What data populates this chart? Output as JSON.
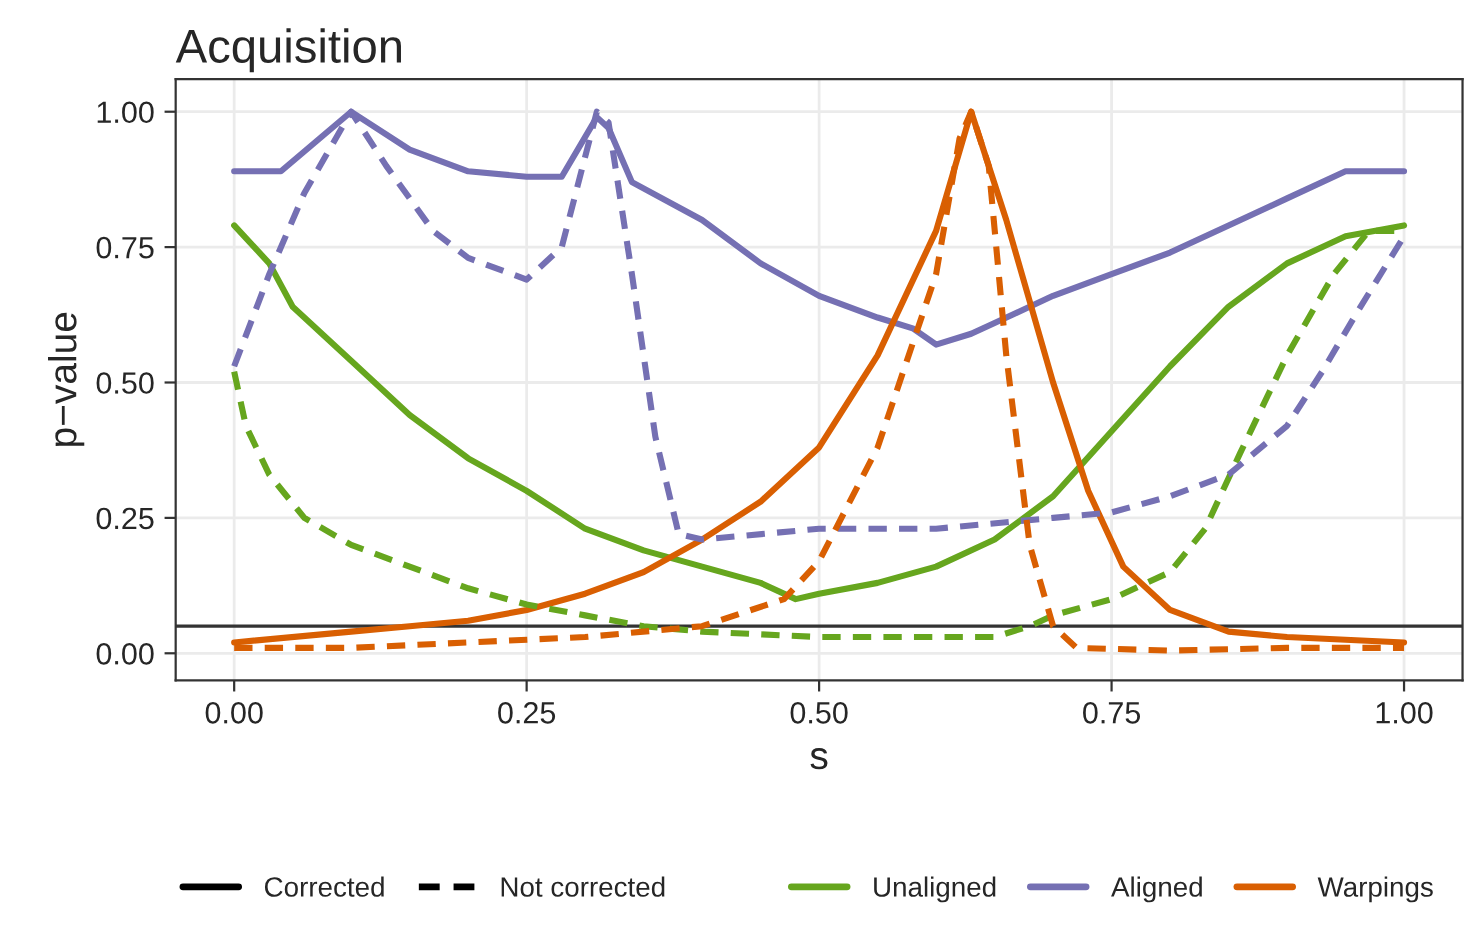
{
  "chart_data": {
    "type": "line",
    "title": "Acquisition",
    "xlabel": "s",
    "ylabel": "p−value",
    "xlim": [
      -0.05,
      1.05
    ],
    "ylim": [
      -0.05,
      1.06
    ],
    "xticks": [
      {
        "value": 0,
        "label": "0.00"
      },
      {
        "value": 0.25,
        "label": "0.25"
      },
      {
        "value": 0.5,
        "label": "0.50"
      },
      {
        "value": 0.75,
        "label": "0.75"
      },
      {
        "value": 1,
        "label": "1.00"
      }
    ],
    "yticks": [
      {
        "value": 0,
        "label": "0.00"
      },
      {
        "value": 0.25,
        "label": "0.25"
      },
      {
        "value": 0.5,
        "label": "0.50"
      },
      {
        "value": 0.75,
        "label": "0.75"
      },
      {
        "value": 1,
        "label": "1.00"
      }
    ],
    "grid": true,
    "legend": "bottom",
    "annotations": [
      "Corrected",
      "Not corrected"
    ],
    "ref_lines": [
      {
        "axis": "y",
        "value": 0.05,
        "color": "#333333"
      }
    ],
    "series": [
      {
        "name": "Unaligned",
        "color": "#66a61e",
        "line_style": "solid",
        "x": [
          0,
          0.03,
          0.05,
          0.1,
          0.15,
          0.2,
          0.25,
          0.3,
          0.35,
          0.4,
          0.45,
          0.48,
          0.5,
          0.55,
          0.6,
          0.65,
          0.7,
          0.75,
          0.8,
          0.85,
          0.9,
          0.95,
          1.0
        ],
        "values": [
          0.79,
          0.72,
          0.64,
          0.54,
          0.44,
          0.36,
          0.3,
          0.23,
          0.19,
          0.16,
          0.13,
          0.1,
          0.11,
          0.13,
          0.16,
          0.21,
          0.29,
          0.41,
          0.53,
          0.64,
          0.72,
          0.77,
          0.79
        ]
      },
      {
        "name": "Aligned",
        "color": "#7570b3",
        "line_style": "solid",
        "x": [
          0,
          0.04,
          0.1,
          0.15,
          0.2,
          0.25,
          0.28,
          0.31,
          0.32,
          0.34,
          0.4,
          0.45,
          0.5,
          0.55,
          0.58,
          0.6,
          0.63,
          0.65,
          0.7,
          0.75,
          0.8,
          0.85,
          0.9,
          0.95,
          1.0
        ],
        "values": [
          0.89,
          0.89,
          1.0,
          0.93,
          0.89,
          0.88,
          0.88,
          0.99,
          0.97,
          0.87,
          0.8,
          0.72,
          0.66,
          0.62,
          0.6,
          0.57,
          0.59,
          0.61,
          0.66,
          0.7,
          0.74,
          0.79,
          0.84,
          0.89,
          0.89
        ]
      },
      {
        "name": "Warpings",
        "color": "#d95f02",
        "line_style": "solid",
        "x": [
          0,
          0.1,
          0.15,
          0.2,
          0.25,
          0.3,
          0.35,
          0.4,
          0.45,
          0.5,
          0.55,
          0.6,
          0.63,
          0.66,
          0.7,
          0.73,
          0.76,
          0.8,
          0.85,
          0.9,
          1.0
        ],
        "values": [
          0.02,
          0.04,
          0.05,
          0.06,
          0.08,
          0.11,
          0.15,
          0.21,
          0.28,
          0.38,
          0.55,
          0.78,
          1.0,
          0.8,
          0.5,
          0.3,
          0.16,
          0.08,
          0.04,
          0.03,
          0.02
        ]
      },
      {
        "color": "#66a61e",
        "line_style": "dashed",
        "x": [
          0,
          0.01,
          0.03,
          0.06,
          0.1,
          0.15,
          0.2,
          0.25,
          0.3,
          0.35,
          0.4,
          0.5,
          0.6,
          0.65,
          0.68,
          0.7,
          0.75,
          0.8,
          0.83,
          0.86,
          0.9,
          0.94,
          0.97,
          1.0
        ],
        "values": [
          0.52,
          0.42,
          0.33,
          0.25,
          0.2,
          0.16,
          0.12,
          0.09,
          0.07,
          0.05,
          0.04,
          0.03,
          0.03,
          0.03,
          0.05,
          0.07,
          0.1,
          0.15,
          0.23,
          0.37,
          0.55,
          0.7,
          0.78,
          0.78
        ]
      },
      {
        "color": "#7570b3",
        "line_style": "dashed",
        "x": [
          0,
          0.03,
          0.06,
          0.1,
          0.13,
          0.17,
          0.2,
          0.25,
          0.28,
          0.31,
          0.32,
          0.34,
          0.36,
          0.38,
          0.4,
          0.5,
          0.6,
          0.7,
          0.75,
          0.8,
          0.85,
          0.9,
          0.93,
          0.96,
          1.0
        ],
        "values": [
          0.53,
          0.7,
          0.85,
          1.0,
          0.9,
          0.78,
          0.73,
          0.69,
          0.75,
          1.0,
          0.98,
          0.7,
          0.4,
          0.22,
          0.21,
          0.23,
          0.23,
          0.25,
          0.26,
          0.29,
          0.33,
          0.42,
          0.52,
          0.63,
          0.77
        ]
      },
      {
        "color": "#d95f02",
        "line_style": "dashed",
        "x": [
          0,
          0.1,
          0.2,
          0.3,
          0.4,
          0.47,
          0.5,
          0.55,
          0.6,
          0.62,
          0.63,
          0.645,
          0.66,
          0.68,
          0.7,
          0.72,
          0.8,
          0.9,
          1.0
        ],
        "values": [
          0.01,
          0.01,
          0.02,
          0.03,
          0.05,
          0.1,
          0.17,
          0.38,
          0.7,
          0.95,
          1.0,
          0.9,
          0.55,
          0.2,
          0.05,
          0.01,
          0.005,
          0.01,
          0.01
        ]
      }
    ]
  }
}
